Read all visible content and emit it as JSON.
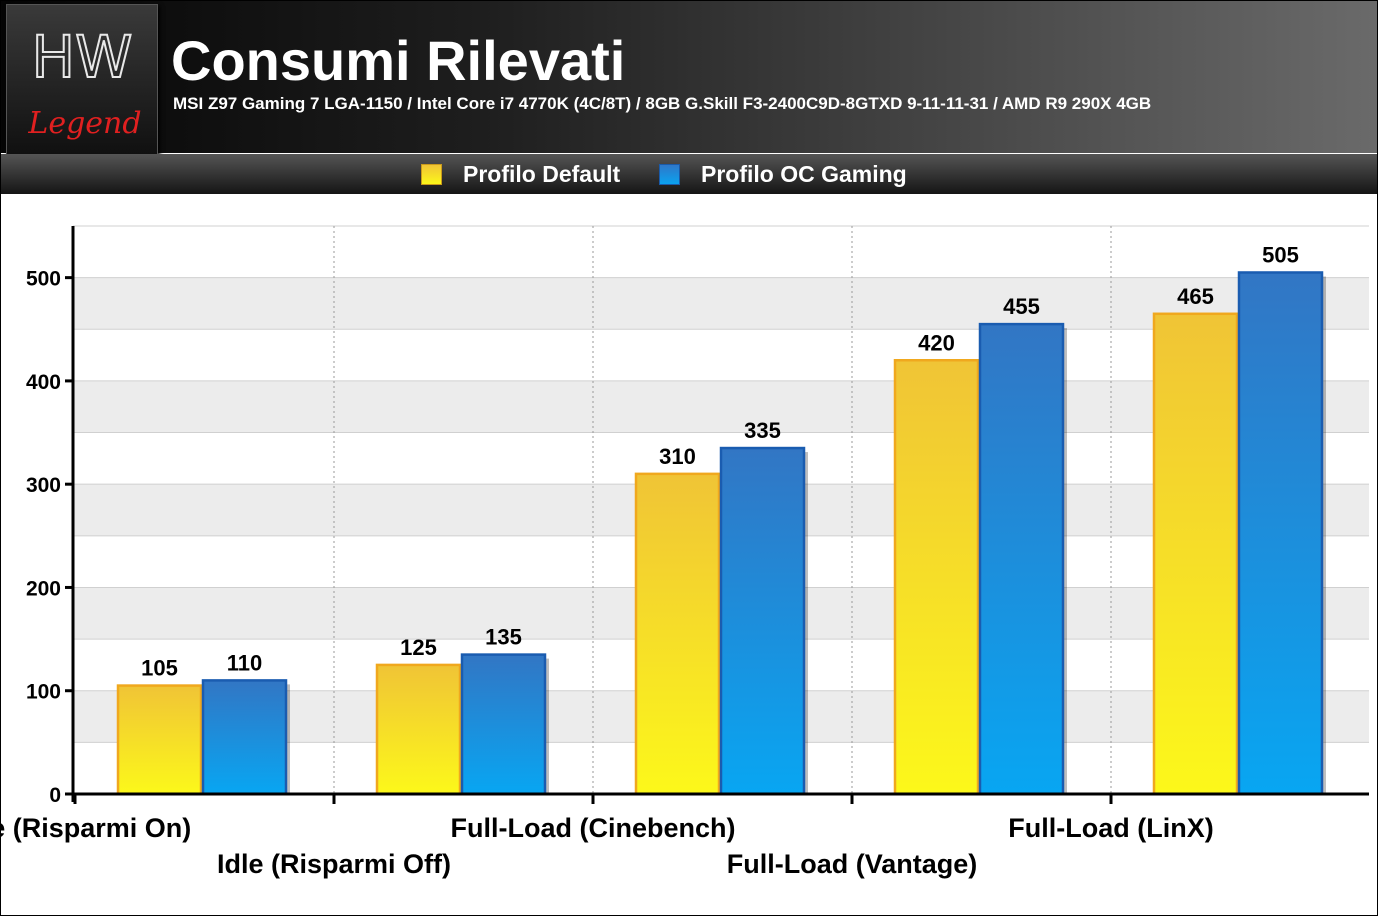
{
  "header": {
    "title": "Consumi Rilevati",
    "subtitle": "MSI Z97 Gaming 7 LGA-1150 / Intel Core i7 4770K (4C/8T) / 8GB G.Skill F3-2400C9D-8GTXD 9-11-11-31 / AMD R9 290X 4GB",
    "logo_text_top": "HW",
    "logo_text_bottom": "Legend"
  },
  "colors": {
    "series_0_top": "#f0c436",
    "series_0_bottom": "#fcf81a",
    "series_0_border": "#f0a81e",
    "series_1_top": "#3276c4",
    "series_1_bottom": "#08a6f2",
    "series_1_border": "#1a5cb0",
    "plot_band": "#ececec"
  },
  "chart_data": {
    "type": "bar",
    "title": "Consumi Rilevati",
    "categories": [
      "Idle (Risparmi On)",
      "Idle (Risparmi Off)",
      "Full-Load (Cinebench)",
      "Full-Load (Vantage)",
      "Full-Load (LinX)"
    ],
    "series": [
      {
        "name": "Profilo Default",
        "values": [
          105,
          125,
          310,
          420,
          465
        ]
      },
      {
        "name": "Profilo OC Gaming",
        "values": [
          110,
          135,
          335,
          455,
          505
        ]
      }
    ],
    "yticks": [
      0,
      100,
      200,
      300,
      400,
      500
    ],
    "ylim": [
      0,
      550
    ],
    "xlabel": "",
    "ylabel": "",
    "legend": "top-center",
    "grid": true
  }
}
